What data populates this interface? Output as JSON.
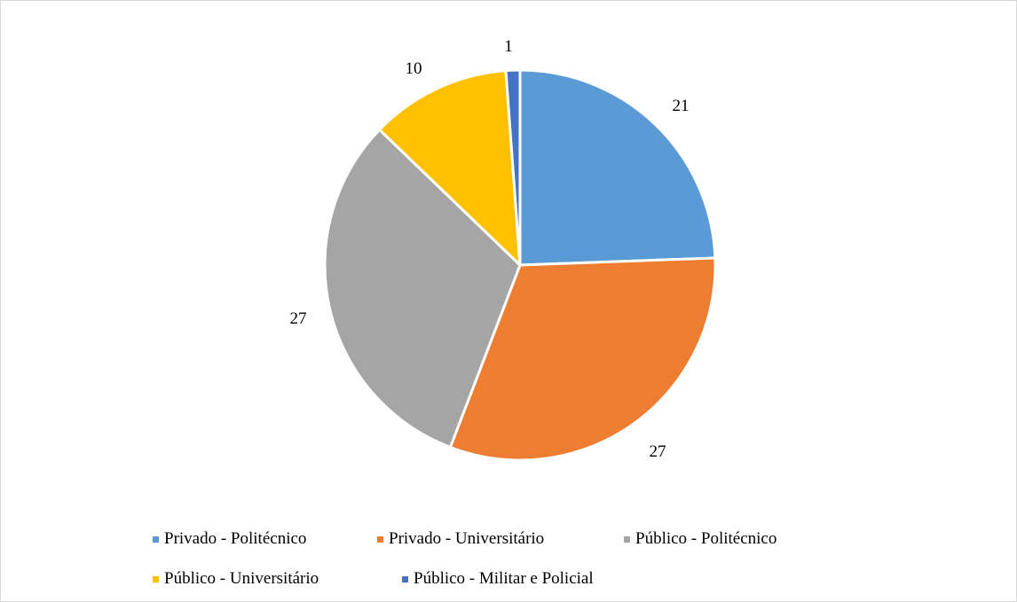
{
  "chart_data": {
    "type": "pie",
    "title": "",
    "slices": [
      {
        "label": "Privado - Politécnico",
        "value": 21,
        "color": "#5B9BD5"
      },
      {
        "label": "Privado - Universitário",
        "value": 27,
        "color": "#ED7D31"
      },
      {
        "label": "Público - Politécnico",
        "value": 27,
        "color": "#A5A5A5"
      },
      {
        "label": "Público - Universitário",
        "value": 10,
        "color": "#FFC000"
      },
      {
        "label": "Público - Militar e Policial",
        "value": 1,
        "color": "#4472C4"
      }
    ],
    "data_labels": [
      "21",
      "27",
      "27",
      "10",
      "1"
    ],
    "legend": {
      "position": "bottom",
      "entries": [
        "Privado - Politécnico",
        "Privado - Universitário",
        "Público - Politécnico",
        "Público - Universitário",
        "Público - Militar e Policial"
      ]
    }
  }
}
